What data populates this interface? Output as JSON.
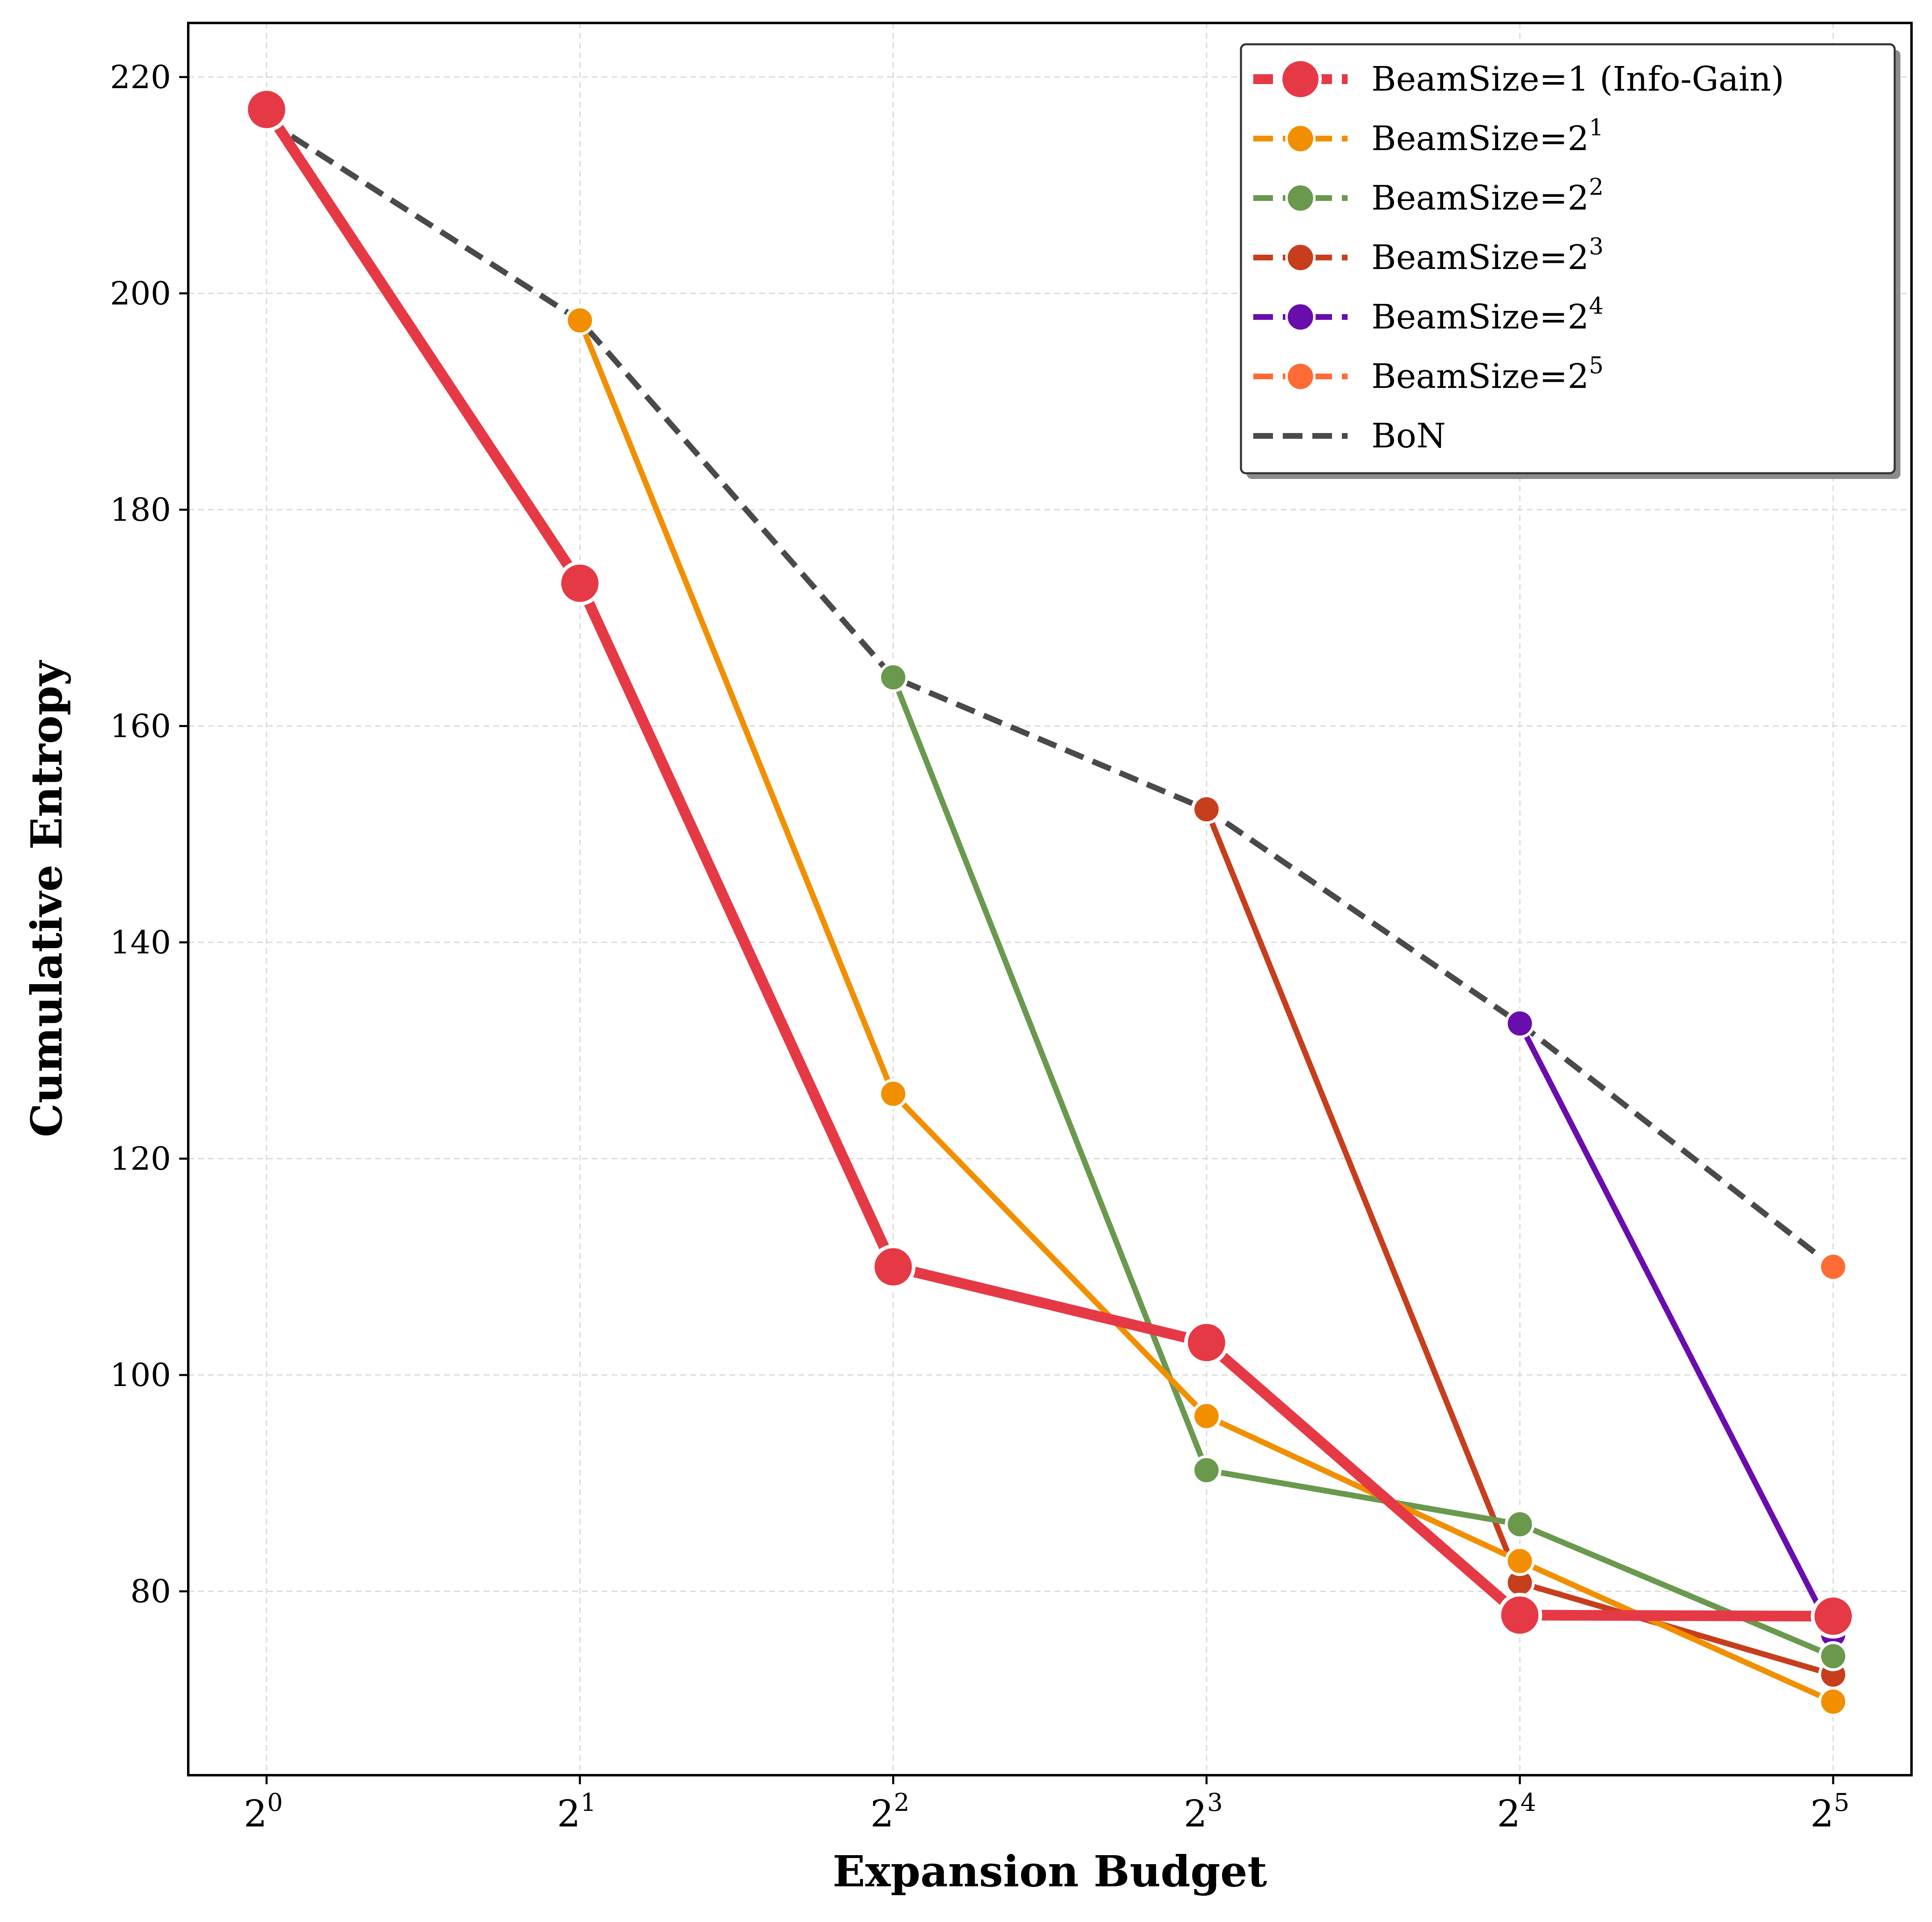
{
  "chart_data": {
    "type": "line",
    "xlabel": "Expansion Budget",
    "ylabel": "Cumulative Entropy",
    "x_ticks": [
      {
        "base": "2",
        "exp": "0",
        "value": 0
      },
      {
        "base": "2",
        "exp": "1",
        "value": 1
      },
      {
        "base": "2",
        "exp": "2",
        "value": 2
      },
      {
        "base": "2",
        "exp": "3",
        "value": 3
      },
      {
        "base": "2",
        "exp": "4",
        "value": 4
      },
      {
        "base": "2",
        "exp": "5",
        "value": 5
      }
    ],
    "y_ticks": [
      "80",
      "100",
      "120",
      "140",
      "160",
      "180",
      "200",
      "220"
    ],
    "xlim": [
      -0.25,
      5.25
    ],
    "ylim": [
      63,
      225
    ],
    "grid": true,
    "legend_position": "top-right",
    "series": [
      {
        "name": "BeamSize=1 (Info-Gain)",
        "label_main": "BeamSize=1 (Info-Gain)",
        "label_sup": "",
        "color": "#E63946",
        "style": "solid",
        "role": "primary",
        "marker": "circle",
        "x": [
          0,
          1,
          2,
          3,
          4,
          5
        ],
        "y": [
          217,
          173.2,
          110,
          103,
          77.8,
          77.7
        ]
      },
      {
        "name": "BeamSize=2^1",
        "label_main": "BeamSize=2",
        "label_sup": "1",
        "color": "#F18F01",
        "style": "solid",
        "role": "normal",
        "marker": "circle",
        "x": [
          1,
          2,
          3,
          4,
          5
        ],
        "y": [
          197.5,
          126,
          96.2,
          82.8,
          69.8
        ]
      },
      {
        "name": "BeamSize=2^2",
        "label_main": "BeamSize=2",
        "label_sup": "2",
        "color": "#6A994E",
        "style": "solid",
        "role": "normal",
        "marker": "circle",
        "x": [
          2,
          3,
          4,
          5
        ],
        "y": [
          164.5,
          91.2,
          86.2,
          74
        ]
      },
      {
        "name": "BeamSize=2^3",
        "label_main": "BeamSize=2",
        "label_sup": "3",
        "color": "#C73E1D",
        "style": "solid",
        "role": "normal",
        "marker": "circle",
        "x": [
          3,
          4,
          5
        ],
        "y": [
          152.3,
          80.8,
          72.3
        ]
      },
      {
        "name": "BeamSize=2^4",
        "label_main": "BeamSize=2",
        "label_sup": "4",
        "color": "#6A0DAD",
        "style": "solid",
        "role": "normal",
        "marker": "circle",
        "x": [
          4,
          5
        ],
        "y": [
          132.5,
          76
        ]
      },
      {
        "name": "BeamSize=2^5",
        "label_main": "BeamSize=2",
        "label_sup": "5",
        "color": "#FF6B35",
        "style": "solid",
        "role": "normal",
        "marker": "circle",
        "x": [
          5
        ],
        "y": [
          110
        ]
      },
      {
        "name": "BoN",
        "label_main": "BoN",
        "label_sup": "",
        "color": "#4a4a4a",
        "style": "dashed",
        "role": "baseline",
        "marker": "none",
        "x": [
          0,
          1,
          2,
          3,
          4,
          5
        ],
        "y": [
          216,
          197.5,
          164.5,
          152.3,
          132.5,
          110
        ]
      }
    ]
  }
}
